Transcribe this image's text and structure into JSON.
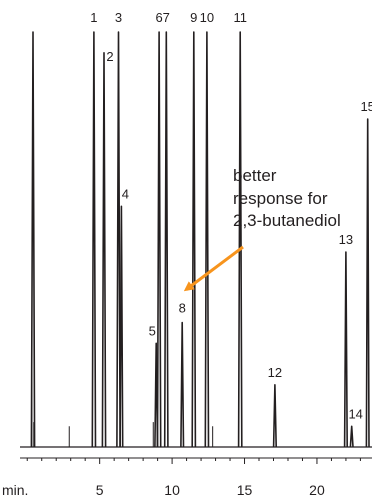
{
  "chart_data": {
    "type": "line",
    "title": "",
    "xlabel": "min.",
    "ylabel": "",
    "xlim": [
      -0.5,
      23.8
    ],
    "ylim": [
      0,
      100
    ],
    "x_ticks": [
      5,
      10,
      15,
      20
    ],
    "x_tick_labels": [
      "5",
      "10",
      "15",
      "20"
    ],
    "grid": false,
    "colors": {
      "trace": "#231f20",
      "annotation_arrow": "#f7941d"
    },
    "baseline_noise": [
      {
        "time": 0.32,
        "height": 28
      },
      {
        "time": 0.45,
        "height": 6
      },
      {
        "time": 2.9,
        "height": 5
      },
      {
        "time": 8.7,
        "height": 6
      },
      {
        "time": 12.8,
        "height": 5
      }
    ],
    "peaks": [
      {
        "label": "",
        "time": 0.4,
        "height": 100
      },
      {
        "label": "1",
        "time": 4.6,
        "height": 100
      },
      {
        "label": "2",
        "time": 5.3,
        "height": 95
      },
      {
        "label": "3",
        "time": 6.3,
        "height": 100
      },
      {
        "label": "4",
        "time": 6.5,
        "height": 58
      },
      {
        "label": "5",
        "time": 8.9,
        "height": 25
      },
      {
        "label": "6",
        "time": 9.1,
        "height": 100
      },
      {
        "label": "7",
        "time": 9.6,
        "height": 100
      },
      {
        "label": "8",
        "time": 10.7,
        "height": 30
      },
      {
        "label": "9",
        "time": 11.5,
        "height": 100
      },
      {
        "label": "10",
        "time": 12.4,
        "height": 100
      },
      {
        "label": "11",
        "time": 14.7,
        "height": 100
      },
      {
        "label": "12",
        "time": 17.1,
        "height": 15
      },
      {
        "label": "13",
        "time": 22.0,
        "height": 47
      },
      {
        "label": "14",
        "time": 22.4,
        "height": 5
      },
      {
        "label": "15",
        "time": 23.5,
        "height": 79
      }
    ],
    "annotation": {
      "lines": [
        "better",
        "response for",
        "2,3-butanediol"
      ],
      "points_to_peak": "8"
    }
  }
}
